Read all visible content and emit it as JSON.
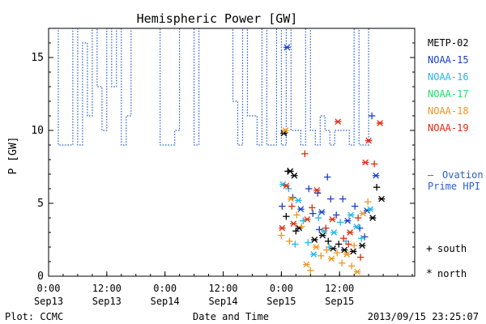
{
  "chart_data": {
    "type": "scatter",
    "title": "Hemispheric Power [GW]",
    "ylabel": "P [GW]",
    "xlabel": "Date and Time",
    "credit": "Plot: CCMC",
    "timestamp": "2013/09/15 23:25:07",
    "xlim": [
      "2013-09-13 00:00",
      "2013-09-16 03:30"
    ],
    "ylim": [
      0,
      17
    ],
    "x_ticks": [
      {
        "time": "2013-09-13 00:00",
        "label": "0:00",
        "sublabel": "Sep13"
      },
      {
        "time": "2013-09-13 12:00",
        "label": "12:00",
        "sublabel": "Sep13"
      },
      {
        "time": "2013-09-14 00:00",
        "label": "0:00",
        "sublabel": "Sep14"
      },
      {
        "time": "2013-09-14 12:00",
        "label": "12:00",
        "sublabel": "Sep14"
      },
      {
        "time": "2013-09-15 00:00",
        "label": "0:00",
        "sublabel": "Sep15"
      },
      {
        "time": "2013-09-15 12:00",
        "label": "12:00",
        "sublabel": "Sep15"
      }
    ],
    "y_ticks": [
      0,
      5,
      10,
      15
    ],
    "legend_satellites": [
      {
        "name": "METP-02",
        "color": "#000000"
      },
      {
        "name": "NOAA-15",
        "color": "#1a3fc8"
      },
      {
        "name": "NOAA-16",
        "color": "#22b8e8"
      },
      {
        "name": "NOAA-17",
        "color": "#22dd66"
      },
      {
        "name": "NOAA-18",
        "color": "#f0961e"
      },
      {
        "name": "NOAA-19",
        "color": "#e02a10"
      }
    ],
    "legend_ovation": {
      "symbol": "–",
      "label": "Ovation Prime HPI",
      "color": "#2a5fd0"
    },
    "legend_markers": [
      {
        "symbol": "+",
        "label": "south"
      },
      {
        "symbol": "*",
        "label": "north"
      }
    ],
    "ovation_line": {
      "name": "Ovation Prime HPI",
      "color": "#2a5fd0",
      "x": [
        "2013-09-12 23:00",
        "2013-09-13 01:30",
        "2013-09-13 02:00",
        "2013-09-13 04:00",
        "2013-09-13 05:00",
        "2013-09-13 06:00",
        "2013-09-13 07:00",
        "2013-09-13 08:00",
        "2013-09-13 09:00",
        "2013-09-13 10:00",
        "2013-09-13 11:00",
        "2013-09-13 12:00",
        "2013-09-13 13:00",
        "2013-09-13 14:00",
        "2013-09-13 15:00",
        "2013-09-13 16:00",
        "2013-09-13 17:00",
        "2013-09-13 18:00",
        "2013-09-13 19:00",
        "2013-09-13 20:00",
        "2013-09-13 21:00",
        "2013-09-13 22:00",
        "2013-09-13 23:00",
        "2013-09-14 00:00",
        "2013-09-14 01:00",
        "2013-09-14 02:00",
        "2013-09-14 03:00",
        "2013-09-14 04:00",
        "2013-09-14 05:00",
        "2013-09-14 06:00",
        "2013-09-14 07:00",
        "2013-09-14 08:00",
        "2013-09-14 09:00",
        "2013-09-14 10:00",
        "2013-09-14 11:00",
        "2013-09-14 12:00",
        "2013-09-14 13:00",
        "2013-09-14 14:00",
        "2013-09-14 15:00",
        "2013-09-14 16:00",
        "2013-09-14 17:00",
        "2013-09-14 18:00",
        "2013-09-14 19:00",
        "2013-09-14 20:00",
        "2013-09-14 21:00",
        "2013-09-14 22:00",
        "2013-09-14 23:00",
        "2013-09-15 00:00",
        "2013-09-15 01:00",
        "2013-09-15 02:00",
        "2013-09-15 03:00",
        "2013-09-15 04:00",
        "2013-09-15 05:00",
        "2013-09-15 06:00",
        "2013-09-15 07:00",
        "2013-09-15 08:00",
        "2013-09-15 09:00",
        "2013-09-15 10:00",
        "2013-09-15 11:00",
        "2013-09-15 12:00",
        "2013-09-15 13:00",
        "2013-09-15 14:00",
        "2013-09-15 15:00",
        "2013-09-15 16:00",
        "2013-09-15 17:00",
        "2013-09-15 18:00",
        "2013-09-15 19:00",
        "2013-09-15 20:00",
        "2013-09-15 21:00",
        "2013-09-15 22:00",
        "2013-09-15 23:00",
        "2013-09-16 00:00"
      ],
      "y": [
        17,
        17,
        9,
        9,
        17,
        9,
        16,
        11,
        17,
        13,
        10,
        17,
        13,
        17,
        9,
        11,
        17,
        17,
        17,
        17,
        17,
        17,
        9,
        9,
        9,
        10,
        17,
        17,
        17,
        9,
        17,
        17,
        17,
        17,
        17,
        17,
        17,
        12,
        9,
        17,
        11,
        11,
        9,
        17,
        9,
        9,
        17,
        9,
        17,
        10,
        10,
        9,
        17,
        10,
        9,
        11,
        10,
        9,
        10,
        10,
        10,
        9,
        17,
        9,
        9,
        17,
        17,
        17,
        17,
        17,
        17,
        17
      ]
    },
    "series": [
      {
        "name": "METP-02",
        "color": "#000000",
        "markers": [
          {
            "x": "2013-09-15 00:30",
            "y": 9.8,
            "m": "*"
          },
          {
            "x": "2013-09-15 01:20",
            "y": 7.2,
            "m": "+"
          },
          {
            "x": "2013-09-15 01:50",
            "y": 7.2,
            "m": "*"
          },
          {
            "x": "2013-09-15 02:40",
            "y": 6.9,
            "m": "*"
          },
          {
            "x": "2013-09-15 01:00",
            "y": 4.1,
            "m": "+"
          },
          {
            "x": "2013-09-15 03:00",
            "y": 3.1,
            "m": "+"
          },
          {
            "x": "2013-09-15 03:40",
            "y": 3.3,
            "m": "*"
          },
          {
            "x": "2013-09-15 06:50",
            "y": 2.5,
            "m": "*"
          },
          {
            "x": "2013-09-15 08:30",
            "y": 2.8,
            "m": "*"
          },
          {
            "x": "2013-09-15 09:40",
            "y": 2.4,
            "m": "+"
          },
          {
            "x": "2013-09-15 10:40",
            "y": 1.9,
            "m": "*"
          },
          {
            "x": "2013-09-15 11:50",
            "y": 2.2,
            "m": "+"
          },
          {
            "x": "2013-09-15 13:00",
            "y": 1.8,
            "m": "*"
          },
          {
            "x": "2013-09-15 14:50",
            "y": 1.7,
            "m": "*"
          },
          {
            "x": "2013-09-15 16:40",
            "y": 2.1,
            "m": "*"
          },
          {
            "x": "2013-09-15 18:50",
            "y": 4.0,
            "m": "*"
          },
          {
            "x": "2013-09-15 19:40",
            "y": 6.1,
            "m": "+"
          },
          {
            "x": "2013-09-15 20:40",
            "y": 5.3,
            "m": "*"
          }
        ]
      },
      {
        "name": "NOAA-15",
        "color": "#1a3fc8",
        "markers": [
          {
            "x": "2013-09-15 01:10",
            "y": 15.7,
            "m": "*"
          },
          {
            "x": "2013-09-15 00:10",
            "y": 4.8,
            "m": "+"
          },
          {
            "x": "2013-09-15 02:20",
            "y": 5.4,
            "m": "+"
          },
          {
            "x": "2013-09-15 04:00",
            "y": 4.6,
            "m": "*"
          },
          {
            "x": "2013-09-15 05:40",
            "y": 6.0,
            "m": "+"
          },
          {
            "x": "2013-09-15 06:30",
            "y": 4.3,
            "m": "+"
          },
          {
            "x": "2013-09-15 07:30",
            "y": 5.7,
            "m": "+"
          },
          {
            "x": "2013-09-15 08:20",
            "y": 4.4,
            "m": "*"
          },
          {
            "x": "2013-09-15 10:10",
            "y": 5.3,
            "m": "+"
          },
          {
            "x": "2013-09-15 11:20",
            "y": 4.2,
            "m": "+"
          },
          {
            "x": "2013-09-15 12:40",
            "y": 5.3,
            "m": "+"
          },
          {
            "x": "2013-09-15 13:40",
            "y": 3.8,
            "m": "*"
          },
          {
            "x": "2013-09-15 15:10",
            "y": 4.8,
            "m": "+"
          },
          {
            "x": "2013-09-15 16:10",
            "y": 3.3,
            "m": "+"
          },
          {
            "x": "2013-09-15 17:40",
            "y": 4.5,
            "m": "*"
          },
          {
            "x": "2013-09-15 18:40",
            "y": 11.0,
            "m": "+"
          },
          {
            "x": "2013-09-15 19:30",
            "y": 6.9,
            "m": "*"
          },
          {
            "x": "2013-09-15 17:10",
            "y": 2.7,
            "m": "+"
          },
          {
            "x": "2013-09-15 09:30",
            "y": 6.8,
            "m": "+"
          },
          {
            "x": "2013-09-15 07:50",
            "y": 3.2,
            "m": "+"
          }
        ]
      },
      {
        "name": "NOAA-16",
        "color": "#22b8e8",
        "markers": [
          {
            "x": "2013-09-15 00:20",
            "y": 6.3,
            "m": "*"
          },
          {
            "x": "2013-09-15 01:30",
            "y": 6.0,
            "m": "+"
          },
          {
            "x": "2013-09-15 03:30",
            "y": 5.2,
            "m": "*"
          },
          {
            "x": "2013-09-15 04:30",
            "y": 3.8,
            "m": "+"
          },
          {
            "x": "2013-09-15 05:30",
            "y": 2.3,
            "m": "+"
          },
          {
            "x": "2013-09-15 06:40",
            "y": 1.5,
            "m": "*"
          },
          {
            "x": "2013-09-15 07:40",
            "y": 4.0,
            "m": "+"
          },
          {
            "x": "2013-09-15 08:50",
            "y": 3.1,
            "m": "*"
          },
          {
            "x": "2013-09-15 09:50",
            "y": 2.0,
            "m": "+"
          },
          {
            "x": "2013-09-15 10:50",
            "y": 3.0,
            "m": "*"
          },
          {
            "x": "2013-09-15 12:10",
            "y": 3.7,
            "m": "+"
          },
          {
            "x": "2013-09-15 13:20",
            "y": 2.4,
            "m": "+"
          },
          {
            "x": "2013-09-15 14:20",
            "y": 4.2,
            "m": "*"
          },
          {
            "x": "2013-09-15 15:30",
            "y": 3.4,
            "m": "*"
          },
          {
            "x": "2013-09-15 16:30",
            "y": 2.6,
            "m": "+"
          },
          {
            "x": "2013-09-15 18:20",
            "y": 4.6,
            "m": "*"
          },
          {
            "x": "2013-09-15 02:50",
            "y": 2.2,
            "m": "+"
          }
        ]
      },
      {
        "name": "NOAA-18",
        "color": "#f0961e",
        "markers": [
          {
            "x": "2013-09-15 00:50",
            "y": 10.0,
            "m": "*"
          },
          {
            "x": "2013-09-15 00:00",
            "y": 2.8,
            "m": "+"
          },
          {
            "x": "2013-09-15 01:40",
            "y": 2.4,
            "m": "+"
          },
          {
            "x": "2013-09-15 02:00",
            "y": 5.3,
            "m": "*"
          },
          {
            "x": "2013-09-15 03:10",
            "y": 4.2,
            "m": "+"
          },
          {
            "x": "2013-09-15 04:10",
            "y": 3.4,
            "m": "+"
          },
          {
            "x": "2013-09-15 05:10",
            "y": 0.8,
            "m": "*"
          },
          {
            "x": "2013-09-15 06:00",
            "y": 0.4,
            "m": "+"
          },
          {
            "x": "2013-09-15 07:10",
            "y": 2.0,
            "m": "*"
          },
          {
            "x": "2013-09-15 08:10",
            "y": 1.4,
            "m": "+"
          },
          {
            "x": "2013-09-15 09:20",
            "y": 1.8,
            "m": "+"
          },
          {
            "x": "2013-09-15 10:20",
            "y": 1.2,
            "m": "*"
          },
          {
            "x": "2013-09-15 11:30",
            "y": 1.6,
            "m": "+"
          },
          {
            "x": "2013-09-15 12:30",
            "y": 0.9,
            "m": "+"
          },
          {
            "x": "2013-09-15 13:30",
            "y": 1.5,
            "m": "*"
          },
          {
            "x": "2013-09-15 14:30",
            "y": 0.7,
            "m": "+"
          },
          {
            "x": "2013-09-15 15:40",
            "y": 0.3,
            "m": "*"
          },
          {
            "x": "2013-09-15 17:50",
            "y": 5.1,
            "m": "+"
          },
          {
            "x": "2013-09-15 16:50",
            "y": 4.3,
            "m": "*"
          },
          {
            "x": "2013-09-15 15:00",
            "y": 2.1,
            "m": "+"
          }
        ]
      },
      {
        "name": "NOAA-19",
        "color": "#e02a10",
        "markers": [
          {
            "x": "2013-09-15 01:00",
            "y": 6.2,
            "m": "*"
          },
          {
            "x": "2013-09-15 00:10",
            "y": 3.3,
            "m": "*"
          },
          {
            "x": "2013-09-15 02:10",
            "y": 4.8,
            "m": "+"
          },
          {
            "x": "2013-09-15 02:30",
            "y": 3.6,
            "m": "*"
          },
          {
            "x": "2013-09-15 04:50",
            "y": 8.4,
            "m": "+"
          },
          {
            "x": "2013-09-15 05:20",
            "y": 3.9,
            "m": "*"
          },
          {
            "x": "2013-09-15 06:20",
            "y": 4.7,
            "m": "+"
          },
          {
            "x": "2013-09-15 07:20",
            "y": 5.9,
            "m": "*"
          },
          {
            "x": "2013-09-15 09:10",
            "y": 3.3,
            "m": "+"
          },
          {
            "x": "2013-09-15 10:30",
            "y": 3.9,
            "m": "*"
          },
          {
            "x": "2013-09-15 11:40",
            "y": 10.6,
            "m": "*"
          },
          {
            "x": "2013-09-15 12:50",
            "y": 2.6,
            "m": "+"
          },
          {
            "x": "2013-09-15 14:10",
            "y": 3.0,
            "m": "*"
          },
          {
            "x": "2013-09-15 15:50",
            "y": 4.0,
            "m": "+"
          },
          {
            "x": "2013-09-15 17:20",
            "y": 7.8,
            "m": "*"
          },
          {
            "x": "2013-09-15 18:00",
            "y": 9.3,
            "m": "*"
          },
          {
            "x": "2013-09-15 19:10",
            "y": 7.7,
            "m": "+"
          },
          {
            "x": "2013-09-15 20:20",
            "y": 10.5,
            "m": "*"
          },
          {
            "x": "2013-09-15 16:20",
            "y": 1.3,
            "m": "+"
          },
          {
            "x": "2013-09-15 13:50",
            "y": 2.2,
            "m": "+"
          }
        ]
      }
    ]
  }
}
